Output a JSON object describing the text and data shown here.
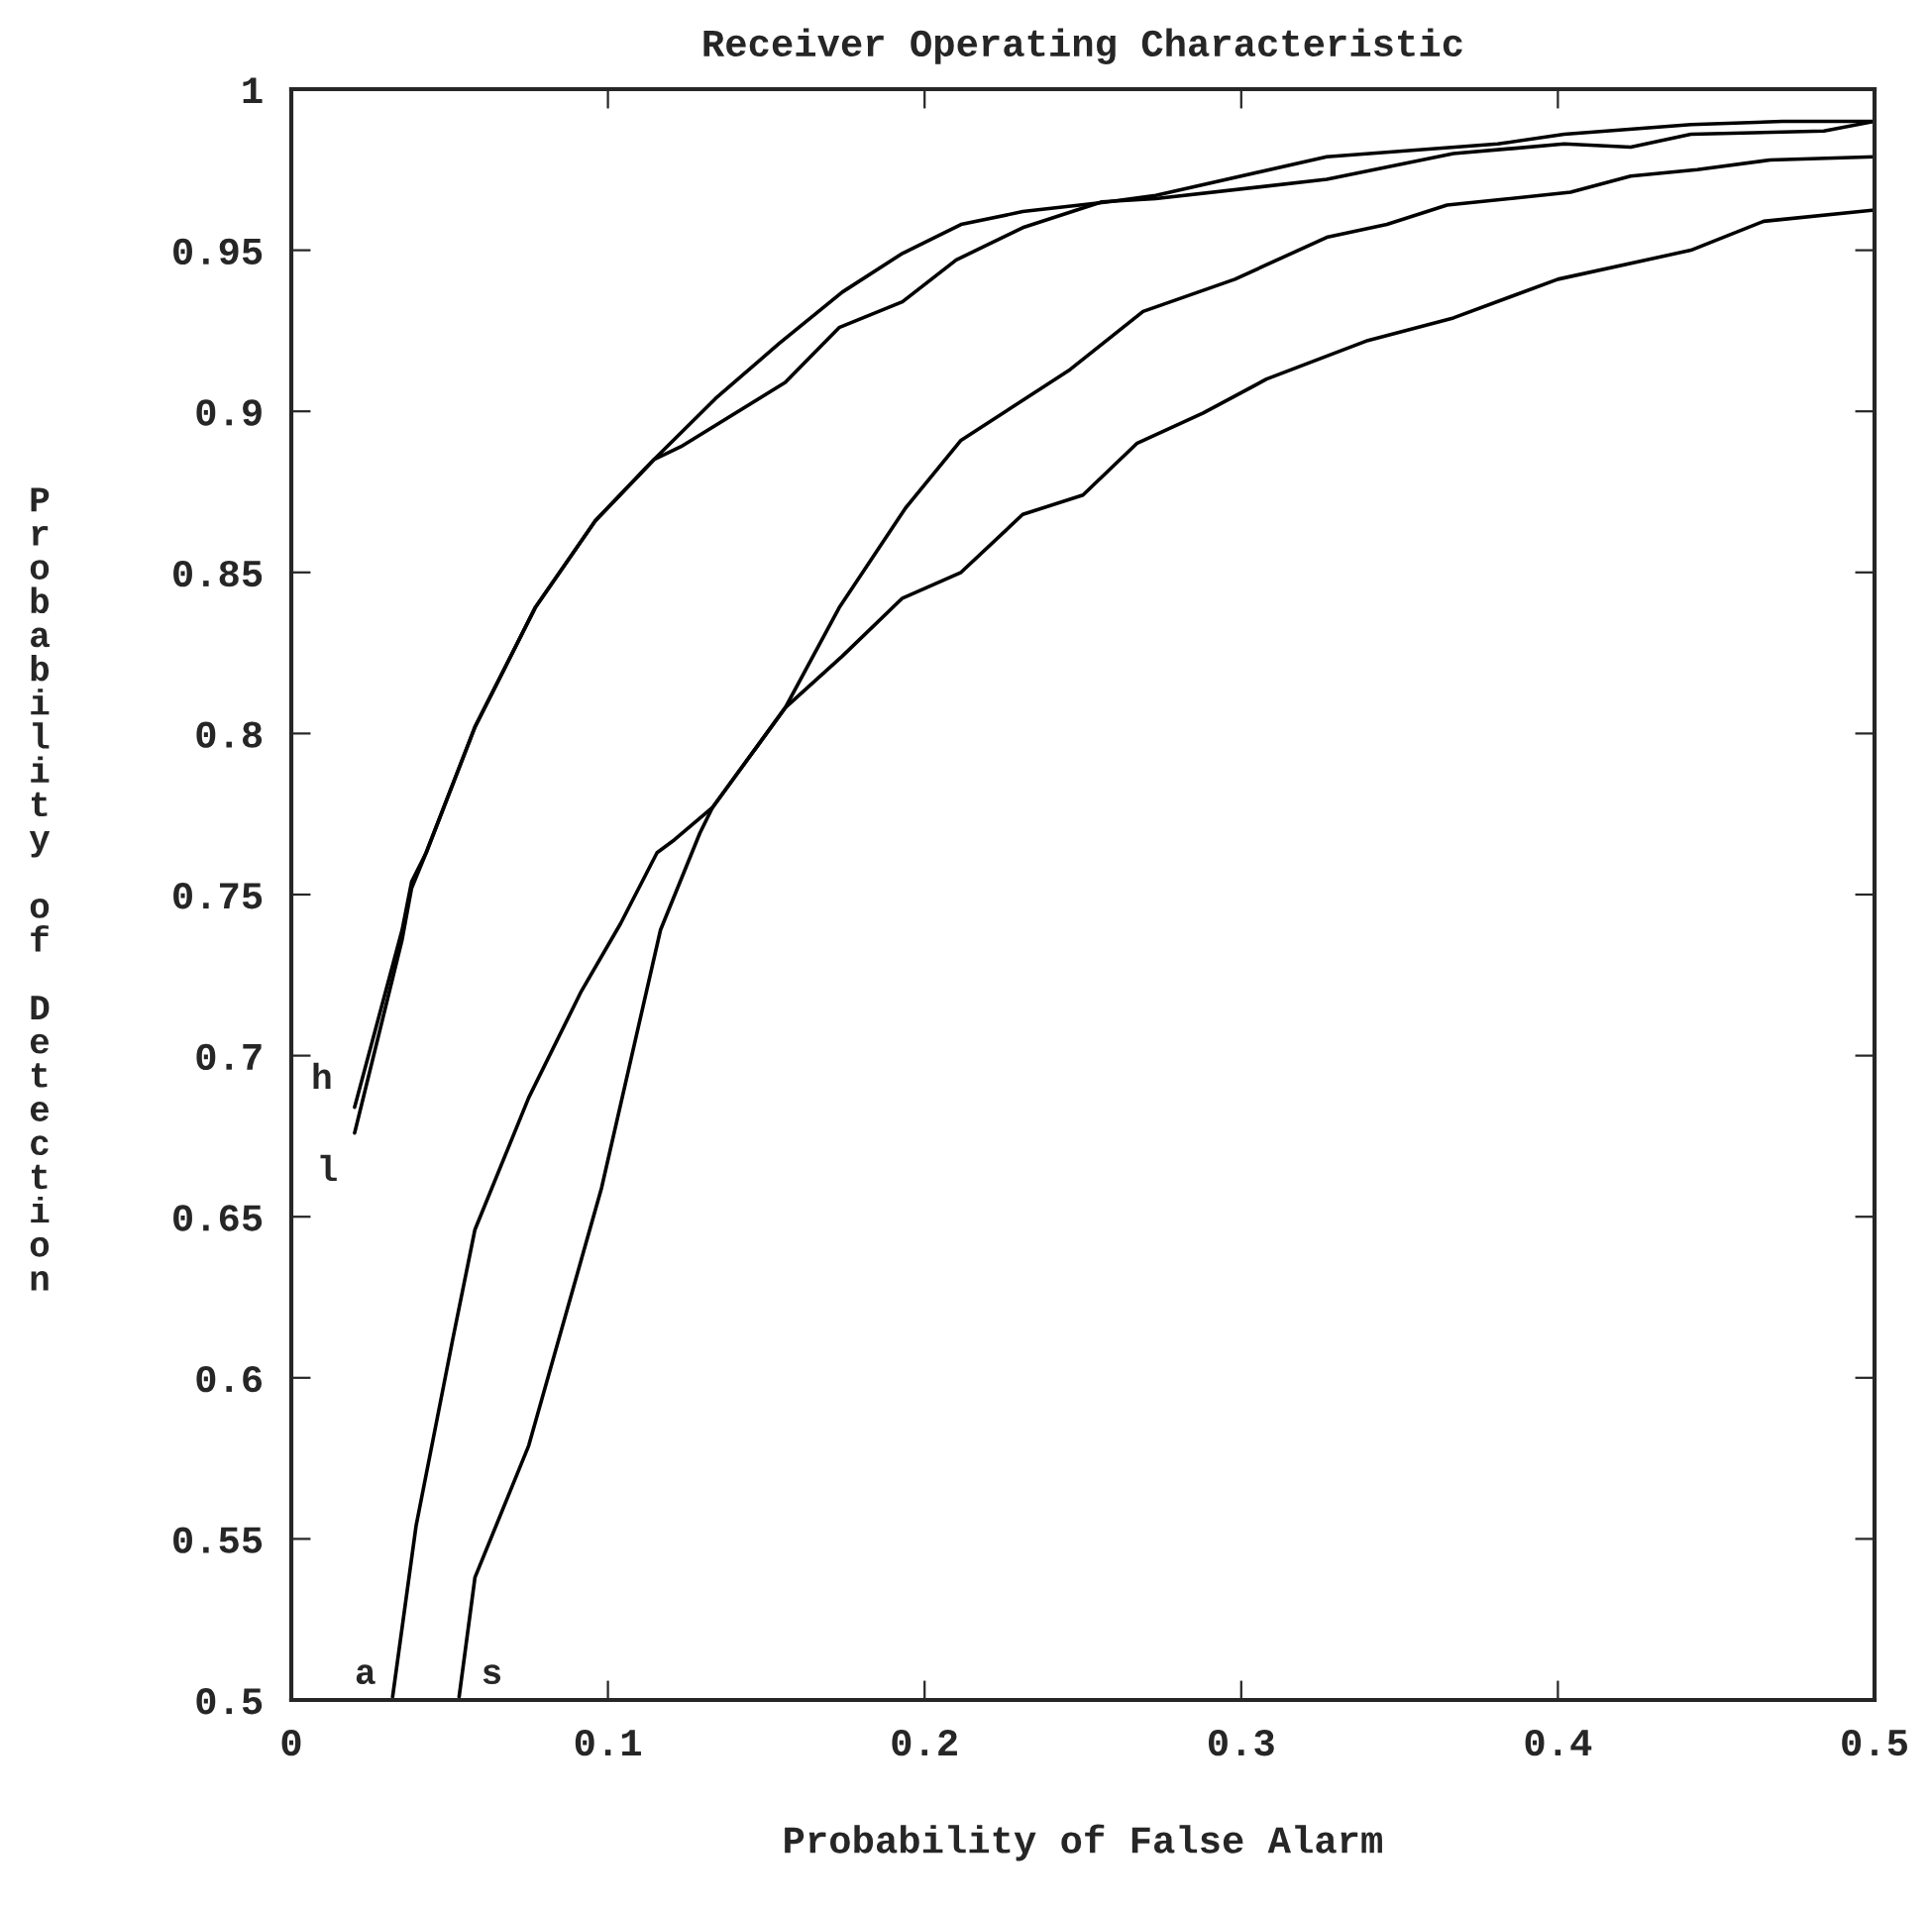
{
  "chart_data": {
    "type": "line",
    "title": "Receiver Operating Characteristic",
    "xlabel": "Probability of False Alarm",
    "ylabel": "Probability of Detection",
    "xlim": [
      0,
      0.5
    ],
    "ylim": [
      0.5,
      1
    ],
    "xticks": [
      0,
      0.1,
      0.2,
      0.3,
      0.4,
      0.5
    ],
    "yticks": [
      0.5,
      0.55,
      0.6,
      0.65,
      0.7,
      0.75,
      0.8,
      0.85,
      0.9,
      0.95,
      1
    ],
    "grid": false,
    "legend": false,
    "marker": "none",
    "line_style": "solid",
    "series": [
      {
        "name": "h",
        "color": "#000000",
        "x": [
          0.02,
          0.035,
          0.038,
          0.0426,
          0.058,
          0.077,
          0.096,
          0.1145,
          0.134,
          0.154,
          0.174,
          0.193,
          0.2115,
          0.231,
          0.258,
          0.273,
          0.327,
          0.381,
          0.402,
          0.442,
          0.471,
          0.5
        ],
        "values": [
          0.684,
          0.739,
          0.754,
          0.763,
          0.802,
          0.839,
          0.866,
          0.885,
          0.904,
          0.921,
          0.937,
          0.949,
          0.958,
          0.962,
          0.965,
          0.967,
          0.979,
          0.983,
          0.986,
          0.989,
          0.99,
          0.99
        ]
      },
      {
        "name": "l",
        "color": "#000000",
        "x": [
          0.02,
          0.035,
          0.038,
          0.0426,
          0.058,
          0.077,
          0.096,
          0.1145,
          0.123,
          0.156,
          0.173,
          0.193,
          0.21,
          0.231,
          0.256,
          0.273,
          0.327,
          0.367,
          0.402,
          0.423,
          0.442,
          0.484,
          0.5
        ],
        "values": [
          0.676,
          0.736,
          0.752,
          0.763,
          0.802,
          0.839,
          0.866,
          0.885,
          0.889,
          0.909,
          0.926,
          0.934,
          0.947,
          0.957,
          0.965,
          0.966,
          0.972,
          0.98,
          0.983,
          0.982,
          0.986,
          0.987,
          0.99
        ]
      },
      {
        "name": "a",
        "color": "#000000",
        "x": [
          0.032,
          0.0394,
          0.051,
          0.058,
          0.075,
          0.0916,
          0.104,
          0.1155,
          0.121,
          0.133,
          0.156,
          0.174,
          0.193,
          0.2115,
          0.231,
          0.25,
          0.267,
          0.288,
          0.308,
          0.34,
          0.367,
          0.4,
          0.442,
          0.465,
          0.5
        ],
        "values": [
          0.501,
          0.554,
          0.612,
          0.646,
          0.687,
          0.72,
          0.741,
          0.763,
          0.767,
          0.777,
          0.808,
          0.824,
          0.842,
          0.85,
          0.868,
          0.874,
          0.89,
          0.8995,
          0.91,
          0.922,
          0.929,
          0.941,
          0.95,
          0.959,
          0.9625
        ]
      },
      {
        "name": "s",
        "color": "#000000",
        "x": [
          0.053,
          0.058,
          0.075,
          0.098,
          0.1166,
          0.129,
          0.133,
          0.156,
          0.173,
          0.194,
          0.2115,
          0.246,
          0.269,
          0.298,
          0.327,
          0.346,
          0.365,
          0.404,
          0.423,
          0.444,
          0.467,
          0.5
        ],
        "values": [
          0.501,
          0.538,
          0.579,
          0.659,
          0.739,
          0.769,
          0.777,
          0.808,
          0.839,
          0.87,
          0.891,
          0.913,
          0.931,
          0.941,
          0.954,
          0.958,
          0.964,
          0.968,
          0.973,
          0.975,
          0.978,
          0.979
        ]
      }
    ]
  }
}
